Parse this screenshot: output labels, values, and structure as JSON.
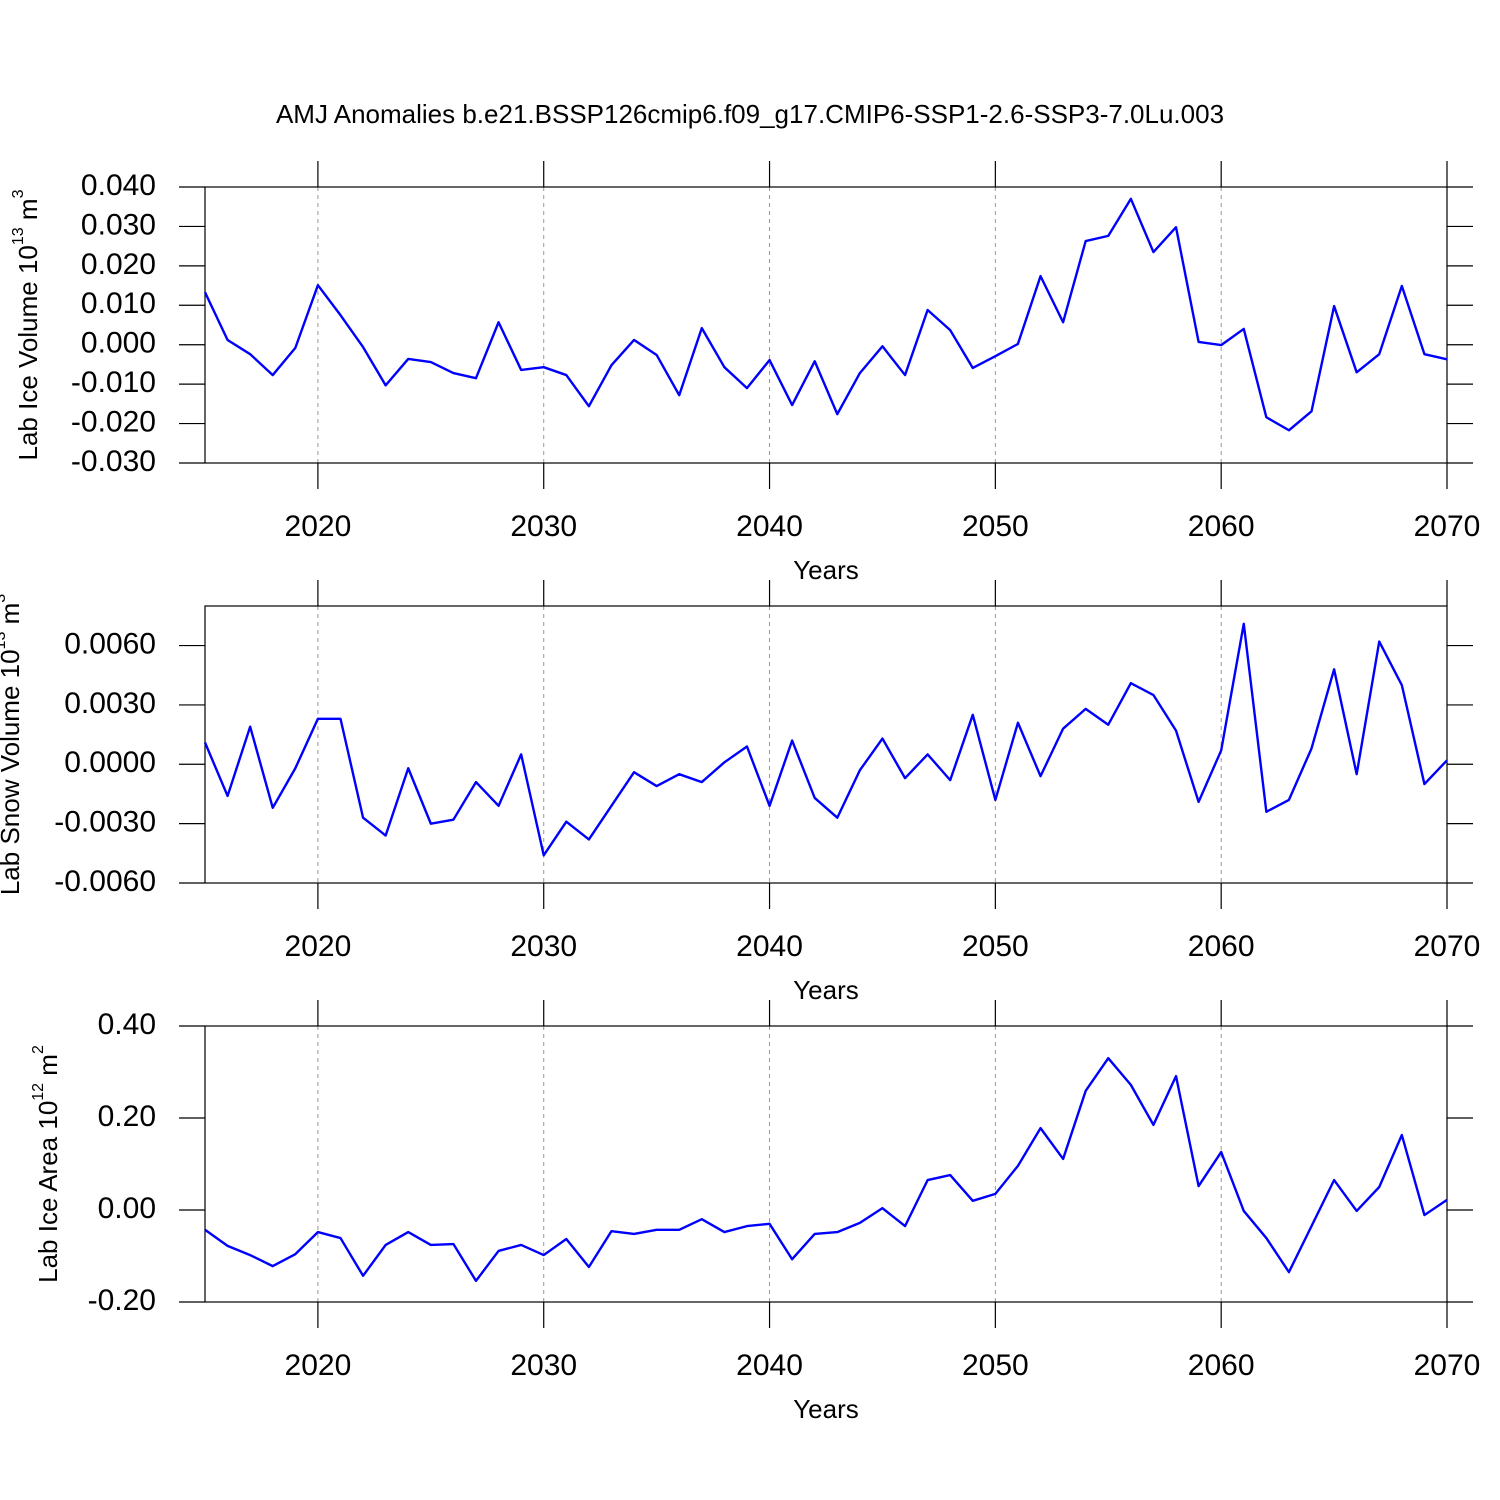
{
  "chart_data": [
    {
      "type": "line",
      "title": "AMJ Anomalies b.e21.BSSP126cmip6.f09_g17.CMIP6-SSP1-2.6-SSP3-7.0Lu.003",
      "xlabel": "Years",
      "ylabel": {
        "text": "Lab Ice Volume 10",
        "exp": "13",
        "unit": " m",
        "unit_exp": "3"
      },
      "x": [
        2015,
        2016,
        2017,
        2018,
        2019,
        2020,
        2021,
        2022,
        2023,
        2024,
        2025,
        2026,
        2027,
        2028,
        2029,
        2030,
        2031,
        2032,
        2033,
        2034,
        2035,
        2036,
        2037,
        2038,
        2039,
        2040,
        2041,
        2042,
        2043,
        2044,
        2045,
        2046,
        2047,
        2048,
        2049,
        2050,
        2051,
        2052,
        2053,
        2054,
        2055,
        2056,
        2057,
        2058,
        2059,
        2060,
        2061,
        2062,
        2063,
        2064,
        2065,
        2066,
        2067,
        2068,
        2069,
        2070
      ],
      "series": [
        {
          "color": "#0000ff",
          "values": [
            0.0133,
            0.0012,
            -0.0024,
            -0.0077,
            -0.0008,
            0.0151,
            0.0075,
            -0.0006,
            -0.0103,
            -0.0036,
            -0.0044,
            -0.0072,
            -0.0085,
            0.0057,
            -0.0064,
            -0.0057,
            -0.0077,
            -0.0156,
            -0.0052,
            0.0012,
            -0.0026,
            -0.0128,
            0.0042,
            -0.0057,
            -0.011,
            -0.0039,
            -0.0153,
            -0.0042,
            -0.0176,
            -0.0072,
            -0.0004,
            -0.0077,
            0.0088,
            0.0037,
            -0.0059,
            -0.0029,
            0.0002,
            0.0174,
            0.0057,
            0.0263,
            0.0276,
            0.037,
            0.0235,
            0.0298,
            0.0007,
            -0.0001,
            0.004,
            -0.0184,
            -0.0217,
            -0.0169,
            0.0098,
            -0.007,
            -0.0024,
            0.0149,
            -0.0024,
            -0.0037
          ]
        }
      ],
      "xlim": [
        2015,
        2070
      ],
      "xticks": [
        2020,
        2030,
        2040,
        2050,
        2060,
        2070
      ],
      "ylim": [
        -0.03,
        0.04
      ],
      "yticks": [
        {
          "value": 0.04,
          "label": "0.040"
        },
        {
          "value": 0.03,
          "label": "0.030"
        },
        {
          "value": 0.02,
          "label": "0.020"
        },
        {
          "value": 0.01,
          "label": "0.010"
        },
        {
          "value": 0,
          "label": "0.000"
        },
        {
          "value": -0.01,
          "label": "-0.010"
        },
        {
          "value": -0.02,
          "label": "-0.020"
        },
        {
          "value": -0.03,
          "label": "-0.030"
        }
      ],
      "grid": true
    },
    {
      "type": "line",
      "xlabel": "Years",
      "ylabel": {
        "text": "Lab Snow Volume 10",
        "exp": "13",
        "unit": " m",
        "unit_exp": "3"
      },
      "x": [
        2015,
        2016,
        2017,
        2018,
        2019,
        2020,
        2021,
        2022,
        2023,
        2024,
        2025,
        2026,
        2027,
        2028,
        2029,
        2030,
        2031,
        2032,
        2033,
        2034,
        2035,
        2036,
        2037,
        2038,
        2039,
        2040,
        2041,
        2042,
        2043,
        2044,
        2045,
        2046,
        2047,
        2048,
        2049,
        2050,
        2051,
        2052,
        2053,
        2054,
        2055,
        2056,
        2057,
        2058,
        2059,
        2060,
        2061,
        2062,
        2063,
        2064,
        2065,
        2066,
        2067,
        2068,
        2069,
        2070
      ],
      "series": [
        {
          "color": "#0000ff",
          "values": [
            0.0011,
            -0.0016,
            0.0019,
            -0.0022,
            -0.0002,
            0.0023,
            0.0023,
            -0.0027,
            -0.0036,
            -0.0002,
            -0.003,
            -0.0028,
            -0.0009,
            -0.0021,
            0.0005,
            -0.0046,
            -0.0029,
            -0.0038,
            -0.0021,
            -0.0004,
            -0.0011,
            -0.0005,
            -0.0009,
            0.0001,
            0.0009,
            -0.0021,
            0.0012,
            -0.0017,
            -0.0027,
            -0.0003,
            0.0013,
            -0.0007,
            0.0005,
            -0.0008,
            0.0025,
            -0.0018,
            0.0021,
            -0.0006,
            0.0018,
            0.0028,
            0.002,
            0.0041,
            0.0035,
            0.0017,
            -0.0019,
            0.0007,
            0.0071,
            -0.0024,
            -0.0018,
            0.0008,
            0.0048,
            -0.0005,
            0.0062,
            0.004,
            -0.001,
            0.0002
          ]
        }
      ],
      "xlim": [
        2015,
        2070
      ],
      "xticks": [
        2020,
        2030,
        2040,
        2050,
        2060,
        2070
      ],
      "ylim": [
        -0.006,
        0.008
      ],
      "yticks": [
        {
          "value": 0.006,
          "label": "0.0060"
        },
        {
          "value": 0.003,
          "label": "0.0030"
        },
        {
          "value": 0,
          "label": "0.0000"
        },
        {
          "value": -0.003,
          "label": "-0.0030"
        },
        {
          "value": -0.006,
          "label": "-0.0060"
        }
      ],
      "grid": true
    },
    {
      "type": "line",
      "xlabel": "Years",
      "ylabel": {
        "text": "Lab Ice Area 10",
        "exp": "12",
        "unit": " m",
        "unit_exp": "2"
      },
      "x": [
        2015,
        2016,
        2017,
        2018,
        2019,
        2020,
        2021,
        2022,
        2023,
        2024,
        2025,
        2026,
        2027,
        2028,
        2029,
        2030,
        2031,
        2032,
        2033,
        2034,
        2035,
        2036,
        2037,
        2038,
        2039,
        2040,
        2041,
        2042,
        2043,
        2044,
        2045,
        2046,
        2047,
        2048,
        2049,
        2050,
        2051,
        2052,
        2053,
        2054,
        2055,
        2056,
        2057,
        2058,
        2059,
        2060,
        2061,
        2062,
        2063,
        2064,
        2065,
        2066,
        2067,
        2068,
        2069,
        2070
      ],
      "series": [
        {
          "color": "#0000ff",
          "values": [
            -0.043,
            -0.078,
            -0.098,
            -0.122,
            -0.096,
            -0.048,
            -0.061,
            -0.143,
            -0.076,
            -0.048,
            -0.076,
            -0.074,
            -0.154,
            -0.089,
            -0.076,
            -0.098,
            -0.063,
            -0.124,
            -0.046,
            -0.052,
            -0.043,
            -0.043,
            -0.02,
            -0.048,
            -0.035,
            -0.03,
            -0.107,
            -0.052,
            -0.048,
            -0.028,
            0.004,
            -0.035,
            0.065,
            0.076,
            0.02,
            0.035,
            0.096,
            0.178,
            0.111,
            0.259,
            0.33,
            0.272,
            0.185,
            0.291,
            0.052,
            0.126,
            -0.002,
            -0.061,
            -0.135,
            -0.035,
            0.065,
            -0.002,
            0.05,
            0.163,
            -0.011,
            0.022
          ]
        }
      ],
      "xlim": [
        2015,
        2070
      ],
      "xticks": [
        2020,
        2030,
        2040,
        2050,
        2060,
        2070
      ],
      "ylim": [
        -0.2,
        0.4
      ],
      "yticks": [
        {
          "value": 0.4,
          "label": "0.40"
        },
        {
          "value": 0.2,
          "label": "0.20"
        },
        {
          "value": 0,
          "label": "0.00"
        },
        {
          "value": -0.2,
          "label": "-0.20"
        }
      ],
      "grid": true
    }
  ]
}
